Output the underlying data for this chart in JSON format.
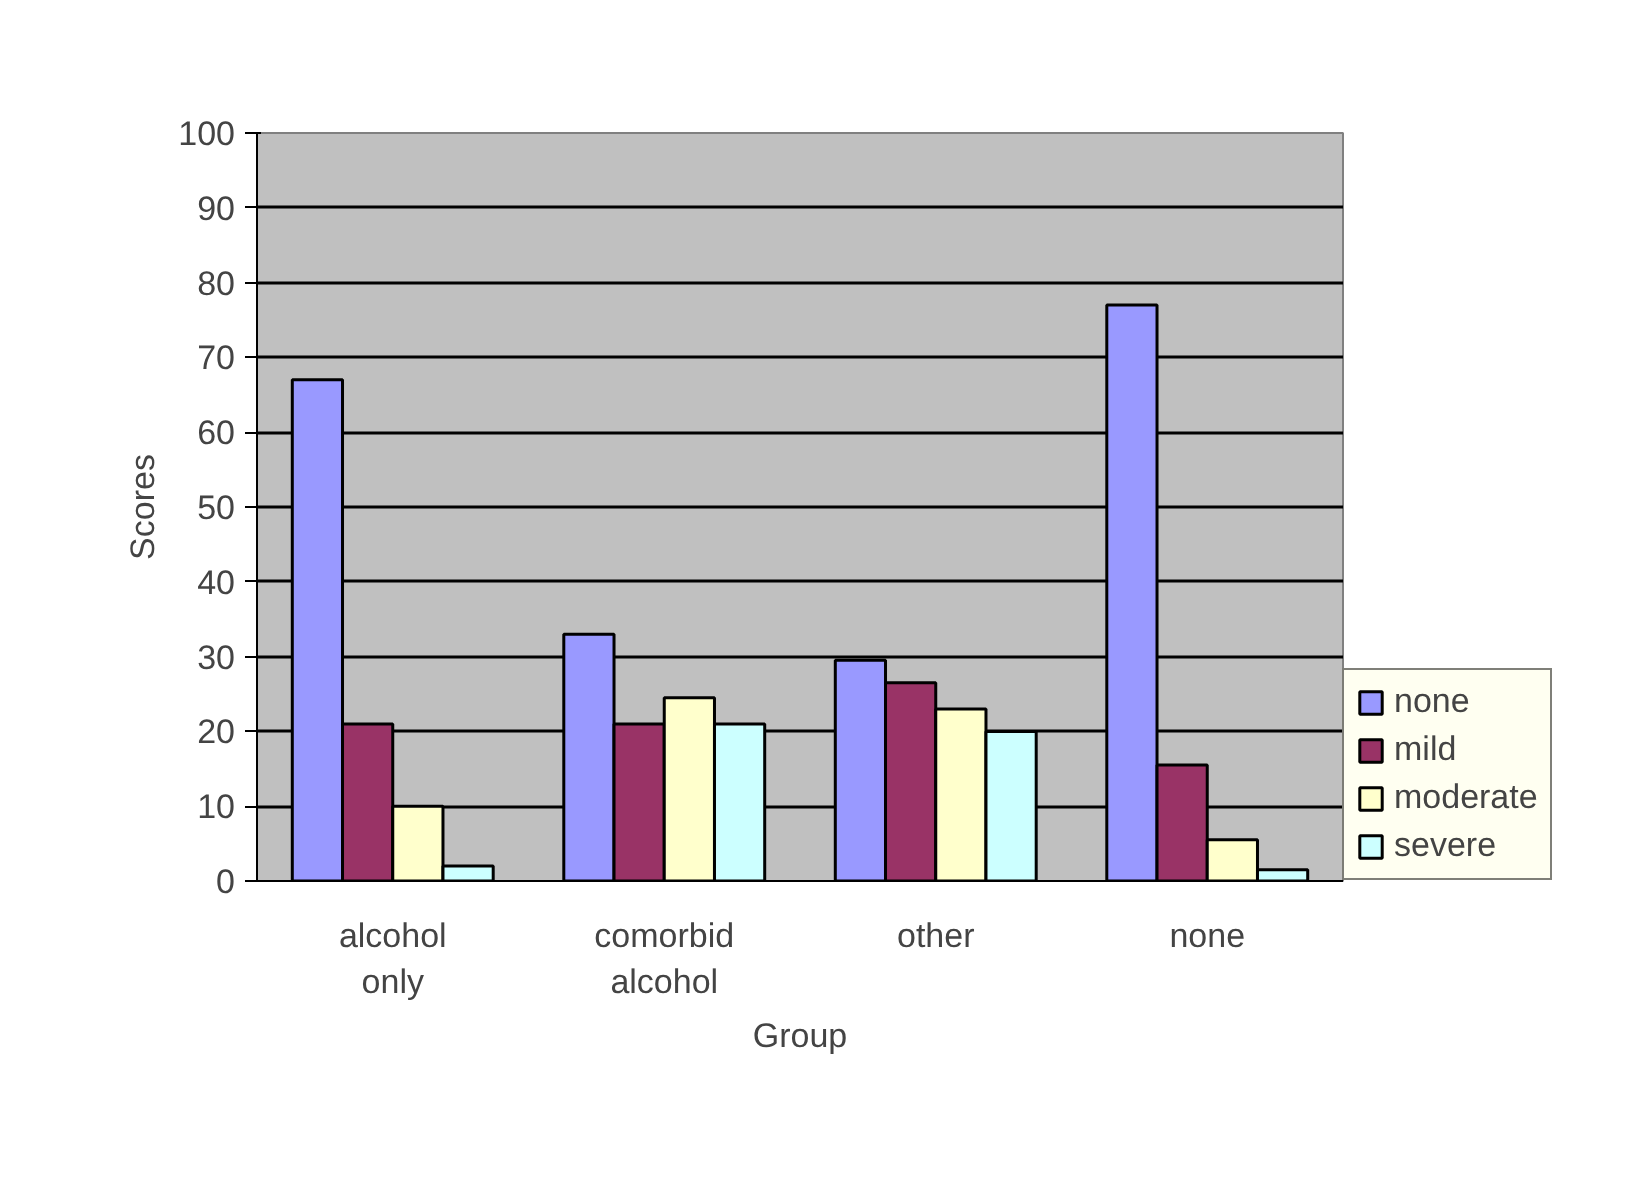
{
  "chart_data": {
    "type": "bar",
    "xlabel": "Group",
    "ylabel": "Scores",
    "categories": [
      "alcohol only",
      "comorbid alcohol",
      "other",
      "none"
    ],
    "series": [
      {
        "name": "none",
        "color": "#9999ff",
        "values": [
          67,
          33,
          29.5,
          77
        ]
      },
      {
        "name": "mild",
        "color": "#993366",
        "values": [
          21,
          21,
          26.5,
          15.5
        ]
      },
      {
        "name": "moderate",
        "color": "#ffffcc",
        "values": [
          10,
          24.5,
          23,
          5.5
        ]
      },
      {
        "name": "severe",
        "color": "#ccffff",
        "values": [
          2,
          21,
          20,
          1.5
        ]
      }
    ],
    "ylim": [
      0,
      100
    ],
    "yticks": [
      0,
      10,
      20,
      30,
      40,
      50,
      60,
      70,
      80,
      90,
      100
    ],
    "grid": "y",
    "legend": "bottom right"
  }
}
